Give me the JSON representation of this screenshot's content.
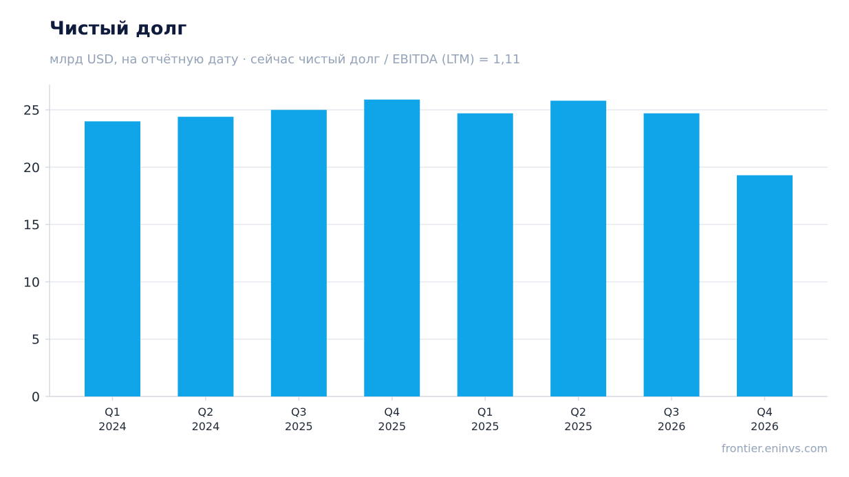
{
  "header": {
    "title": "Чистый долг",
    "subtitle": "млрд USD, на отчётную дату · сейчас чистый долг / EBITDA (LTM) = 1,11"
  },
  "footer": {
    "source": "frontier.eninvs.com"
  },
  "colors": {
    "bar": "#10a5e8",
    "grid": "#e5e9ef",
    "axis": "#d5dbe3",
    "title": "#0f1b3d",
    "subtitle": "#94a3b8"
  },
  "chart_data": {
    "type": "bar",
    "categories": [
      [
        "Q1",
        "2024"
      ],
      [
        "Q2",
        "2024"
      ],
      [
        "Q3",
        "2025"
      ],
      [
        "Q4",
        "2025"
      ],
      [
        "Q1",
        "2025"
      ],
      [
        "Q2",
        "2025"
      ],
      [
        "Q3",
        "2026"
      ],
      [
        "Q4",
        "2026"
      ]
    ],
    "values": [
      24.0,
      24.4,
      25.0,
      25.9,
      24.7,
      25.8,
      24.7,
      19.3
    ],
    "ylim": [
      0,
      27.2
    ],
    "yticks": [
      0,
      5,
      10,
      15,
      20,
      25
    ],
    "grid": true,
    "legend": false
  }
}
